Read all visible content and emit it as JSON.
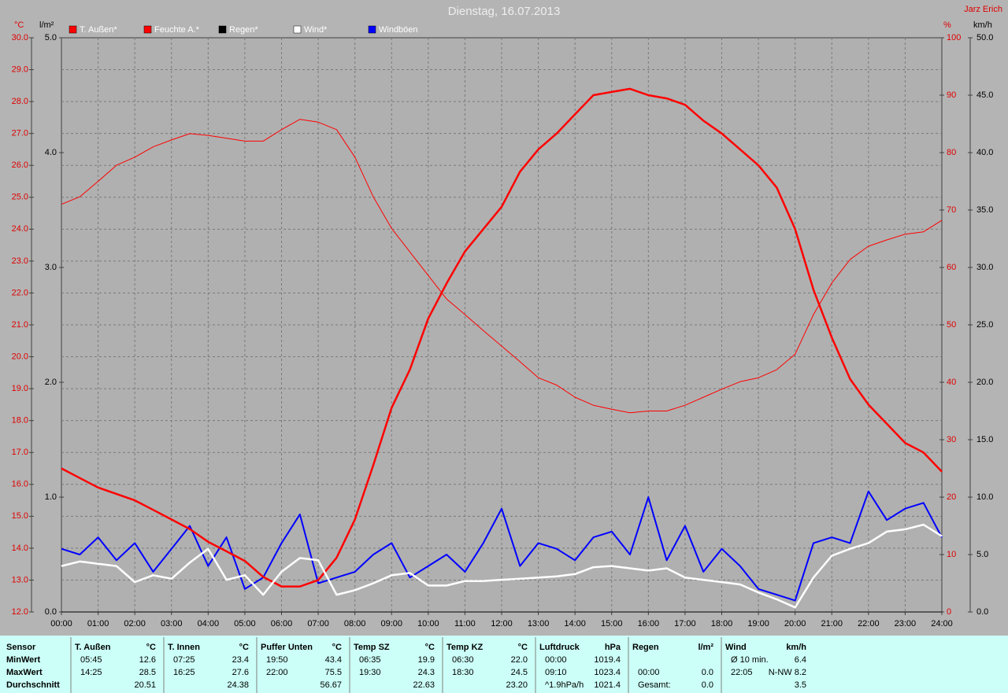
{
  "chart_data": {
    "type": "line",
    "title": "Dienstag, 16.07.2013",
    "author": "Jarz Erich",
    "ylabel": "°C",
    "y2label": "%",
    "y3label": "l/m²",
    "y4label": "km/h",
    "grid": true,
    "xlim": [
      0,
      24
    ],
    "xticks": [
      {
        "value": 0,
        "label": "00:00"
      },
      {
        "value": 1,
        "label": "01:00"
      },
      {
        "value": 2,
        "label": "02:00"
      },
      {
        "value": 3,
        "label": "03:00"
      },
      {
        "value": 4,
        "label": "04:00"
      },
      {
        "value": 5,
        "label": "05:00"
      },
      {
        "value": 6,
        "label": "06:00"
      },
      {
        "value": 7,
        "label": "07:00"
      },
      {
        "value": 8,
        "label": "08:00"
      },
      {
        "value": 9,
        "label": "09:00"
      },
      {
        "value": 10,
        "label": "10:00"
      },
      {
        "value": 11,
        "label": "11:00"
      },
      {
        "value": 12,
        "label": "12:00"
      },
      {
        "value": 13,
        "label": "13:00"
      },
      {
        "value": 14,
        "label": "14:00"
      },
      {
        "value": 15,
        "label": "15:00"
      },
      {
        "value": 16,
        "label": "16:00"
      },
      {
        "value": 17,
        "label": "17:00"
      },
      {
        "value": 18,
        "label": "18:00"
      },
      {
        "value": 19,
        "label": "19:00"
      },
      {
        "value": 20,
        "label": "20:00"
      },
      {
        "value": 21,
        "label": "21:00"
      },
      {
        "value": 22,
        "label": "22:00"
      },
      {
        "value": 23,
        "label": "23:00"
      },
      {
        "value": 24,
        "label": "24:00"
      }
    ],
    "ylim": [
      12,
      30
    ],
    "yticks": [
      {
        "value": 12,
        "label": "12.0"
      },
      {
        "value": 13,
        "label": "13.0"
      },
      {
        "value": 14,
        "label": "14.0"
      },
      {
        "value": 15,
        "label": "15.0"
      },
      {
        "value": 16,
        "label": "16.0"
      },
      {
        "value": 17,
        "label": "17.0"
      },
      {
        "value": 18,
        "label": "18.0"
      },
      {
        "value": 19,
        "label": "19.0"
      },
      {
        "value": 20,
        "label": "20.0"
      },
      {
        "value": 21,
        "label": "21.0"
      },
      {
        "value": 22,
        "label": "22.0"
      },
      {
        "value": 23,
        "label": "23.0"
      },
      {
        "value": 24,
        "label": "24.0"
      },
      {
        "value": 25,
        "label": "25.0"
      },
      {
        "value": 26,
        "label": "26.0"
      },
      {
        "value": 27,
        "label": "27.0"
      },
      {
        "value": 28,
        "label": "28.0"
      },
      {
        "value": 29,
        "label": "29.0"
      },
      {
        "value": 30,
        "label": "30.0"
      }
    ],
    "y2lim": [
      0,
      100
    ],
    "y2ticks": [
      0,
      10,
      20,
      30,
      40,
      50,
      60,
      70,
      80,
      90,
      100
    ],
    "y3lim": [
      0,
      5
    ],
    "y3ticks": [
      {
        "value": 0,
        "label": "0.0"
      },
      {
        "value": 1,
        "label": "1.0"
      },
      {
        "value": 2,
        "label": "2.0"
      },
      {
        "value": 3,
        "label": "3.0"
      },
      {
        "value": 4,
        "label": "4.0"
      },
      {
        "value": 5,
        "label": "5.0"
      }
    ],
    "y4lim": [
      0,
      50
    ],
    "y4ticks": [
      {
        "value": 0,
        "label": "0.0"
      },
      {
        "value": 5,
        "label": "5.0"
      },
      {
        "value": 10,
        "label": "10.0"
      },
      {
        "value": 15,
        "label": "15.0"
      },
      {
        "value": 20,
        "label": "20.0"
      },
      {
        "value": 25,
        "label": "25.0"
      },
      {
        "value": 30,
        "label": "30.0"
      },
      {
        "value": 35,
        "label": "35.0"
      },
      {
        "value": 40,
        "label": "40.0"
      },
      {
        "value": 45,
        "label": "45.0"
      },
      {
        "value": 50,
        "label": "50.0"
      }
    ],
    "x": [
      0,
      0.5,
      1,
      1.5,
      2,
      2.5,
      3,
      3.5,
      4,
      4.5,
      5,
      5.5,
      6,
      6.5,
      7,
      7.5,
      8,
      8.5,
      9,
      9.5,
      10,
      10.5,
      11,
      11.5,
      12,
      12.5,
      13,
      13.5,
      14,
      14.5,
      15,
      15.5,
      16,
      16.5,
      17,
      17.5,
      18,
      18.5,
      19,
      19.5,
      20,
      20.5,
      21,
      21.5,
      22,
      22.5,
      23,
      23.5,
      24
    ],
    "series": [
      {
        "name": "T. Außen*",
        "color": "#ff0000",
        "axis": "y",
        "values": [
          16.5,
          16.2,
          15.9,
          15.7,
          15.5,
          15.2,
          14.9,
          14.6,
          14.2,
          13.9,
          13.6,
          13.1,
          12.8,
          12.8,
          13.0,
          13.7,
          14.9,
          16.6,
          18.4,
          19.6,
          21.2,
          22.3,
          23.3,
          24.0,
          24.7,
          25.8,
          26.5,
          27.0,
          27.6,
          28.2,
          28.3,
          28.4,
          28.2,
          28.1,
          27.9,
          27.4,
          27.0,
          26.5,
          26.0,
          25.3,
          24.0,
          22.1,
          20.6,
          19.3,
          18.5,
          17.9,
          17.3,
          17.0,
          16.4
        ]
      },
      {
        "name": "Feuchte A.*",
        "color": "#ff0000",
        "axis": "y2",
        "values": [
          71,
          72.3,
          75,
          77.8,
          79.2,
          81,
          82.2,
          83.3,
          83,
          82.5,
          82,
          82,
          84,
          85.8,
          85.3,
          84,
          79.2,
          72.3,
          66.8,
          62.7,
          58.6,
          54.5,
          51.8,
          49,
          46.3,
          43.6,
          40.8,
          39.5,
          37.4,
          36,
          35.3,
          34.7,
          35,
          35,
          36,
          37.4,
          38.8,
          40.1,
          40.8,
          42.2,
          44.9,
          51.8,
          57.3,
          61.4,
          63.7,
          64.8,
          65.8,
          66.2,
          68.2
        ]
      },
      {
        "name": "Regen*",
        "color": "#000000",
        "axis": "y3",
        "values": [
          0,
          0,
          0,
          0,
          0,
          0,
          0,
          0,
          0,
          0,
          0,
          0,
          0,
          0,
          0,
          0,
          0,
          0,
          0,
          0,
          0,
          0,
          0,
          0,
          0,
          0,
          0,
          0,
          0,
          0,
          0,
          0,
          0,
          0,
          0,
          0,
          0,
          0,
          0,
          0,
          0,
          0,
          0,
          0,
          0,
          0,
          0,
          0,
          0
        ]
      },
      {
        "name": "Wind*",
        "color": "#ffffff",
        "axis": "y4",
        "values": [
          4.0,
          4.4,
          4.2,
          4.0,
          2.6,
          3.2,
          2.9,
          4.3,
          5.5,
          2.8,
          3.2,
          1.5,
          3.5,
          4.7,
          4.5,
          1.5,
          1.9,
          2.5,
          3.2,
          3.4,
          2.3,
          2.3,
          2.7,
          2.7,
          2.8,
          2.9,
          3.0,
          3.1,
          3.3,
          3.9,
          4.0,
          3.8,
          3.6,
          3.8,
          3.0,
          2.8,
          2.6,
          2.4,
          1.7,
          1.1,
          0.4,
          3.0,
          4.9,
          5.5,
          6.0,
          7.0,
          7.2,
          7.6,
          6.6
        ]
      },
      {
        "name": "Windböen",
        "color": "#0000ff",
        "axis": "y4",
        "values": [
          5.5,
          5.0,
          6.5,
          4.5,
          6.0,
          3.5,
          5.5,
          7.5,
          4.0,
          6.5,
          2.0,
          3.0,
          6.0,
          8.5,
          2.5,
          3.0,
          3.5,
          5.0,
          6.0,
          3.0,
          4.0,
          5.0,
          3.5,
          6.0,
          9.0,
          4.0,
          6.0,
          5.5,
          4.5,
          6.5,
          7.0,
          5.0,
          10.0,
          4.5,
          7.5,
          3.5,
          5.5,
          4.0,
          2.0,
          1.5,
          1.0,
          6.0,
          6.5,
          6.0,
          10.5,
          8.0,
          9.0,
          9.5,
          6.5
        ]
      }
    ]
  },
  "table": {
    "row_labels": [
      "Sensor",
      "MinWert",
      "MaxWert",
      "Durchschnitt"
    ],
    "groups": [
      {
        "name": "T. Außen",
        "unit": "°C",
        "min": [
          "05:45",
          "12.6"
        ],
        "max": [
          "14:25",
          "28.5"
        ],
        "avg": [
          "20.51"
        ]
      },
      {
        "name": "T. Innen",
        "unit": "°C",
        "min": [
          "07:25",
          "23.4"
        ],
        "max": [
          "16:25",
          "27.6"
        ],
        "avg": [
          "24.38"
        ]
      },
      {
        "name": "Puffer Unten",
        "unit": "°C",
        "min": [
          "19:50",
          "43.4"
        ],
        "max": [
          "22:00",
          "75.5"
        ],
        "avg": [
          "56.67"
        ]
      },
      {
        "name": "Temp SZ",
        "unit": "°C",
        "min": [
          "06:35",
          "19.9"
        ],
        "max": [
          "19:30",
          "24.3"
        ],
        "avg": [
          "22.63"
        ]
      },
      {
        "name": "Temp KZ",
        "unit": "°C",
        "min": [
          "06:30",
          "22.0"
        ],
        "max": [
          "18:30",
          "24.5"
        ],
        "avg": [
          "23.20"
        ]
      },
      {
        "name": "Luftdruck",
        "unit": "hPa",
        "min": [
          "00:00",
          "1019.4"
        ],
        "max": [
          "09:10",
          "1023.4"
        ],
        "avg": [
          "^1.9hPa/h",
          "1021.4"
        ]
      },
      {
        "name": "Regen",
        "unit": "l/m²",
        "max": [
          "00:00",
          "0.0"
        ],
        "avg": [
          "Gesamt:",
          "0.0"
        ]
      },
      {
        "name": "Wind",
        "unit": "km/h",
        "min": [
          "Ø 10 min.",
          "6.4"
        ],
        "max": [
          "22:05",
          "N-NW 8.2"
        ],
        "avg": [
          "3.5"
        ]
      }
    ]
  }
}
